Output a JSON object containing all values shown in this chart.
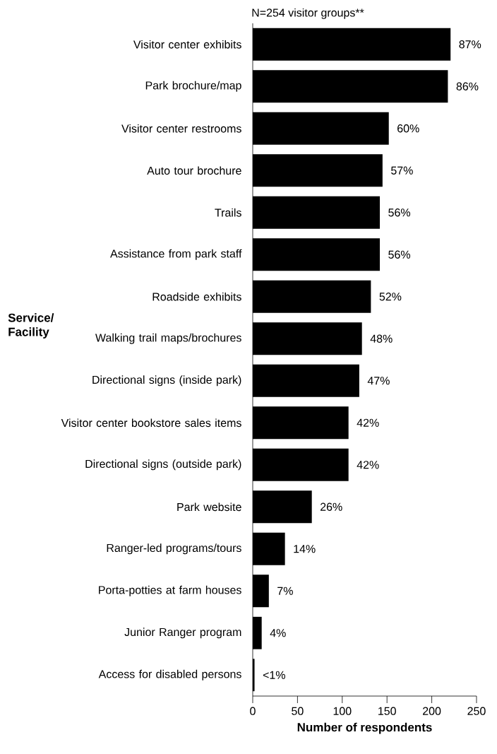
{
  "chart_data": {
    "type": "bar",
    "orientation": "horizontal",
    "title": "N=254 visitor groups**",
    "xlabel": "Number of respondents",
    "ylabel": "Service/ Facility",
    "categories": [
      "Visitor center exhibits",
      "Park brochure/map",
      "Visitor center restrooms",
      "Auto tour brochure",
      "Trails",
      "Assistance from park staff",
      "Roadside exhibits",
      "Walking trail maps/brochures",
      "Directional signs (inside park)",
      "Visitor center bookstore sales items",
      "Directional signs (outside park)",
      "Park website",
      "Ranger-led programs/tours",
      "Porta-potties at farm houses",
      "Junior Ranger program",
      "Access for disabled persons"
    ],
    "values": [
      221,
      218,
      152,
      145,
      142,
      142,
      132,
      122,
      119,
      107,
      107,
      66,
      36,
      18,
      10,
      2
    ],
    "annotations": [
      {
        "text": "87%",
        "x": 221,
        "y": "Visitor center exhibits"
      },
      {
        "text": "86%",
        "x": 218,
        "y": "Park brochure/map"
      },
      {
        "text": "60%",
        "x": 152,
        "y": "Visitor center restrooms"
      },
      {
        "text": "57%",
        "x": 145,
        "y": "Auto tour brochure"
      },
      {
        "text": "56%",
        "x": 142,
        "y": "Trails"
      },
      {
        "text": "56%",
        "x": 142,
        "y": "Assistance from park staff"
      },
      {
        "text": "52%",
        "x": 132,
        "y": "Roadside exhibits"
      },
      {
        "text": "48%",
        "x": 122,
        "y": "Walking trail maps/brochures"
      },
      {
        "text": "47%",
        "x": 119,
        "y": "Directional signs (inside park)"
      },
      {
        "text": "42%",
        "x": 107,
        "y": "Visitor center bookstore sales items"
      },
      {
        "text": "42%",
        "x": 107,
        "y": "Directional signs (outside park)"
      },
      {
        "text": "26%",
        "x": 66,
        "y": "Park website"
      },
      {
        "text": "14%",
        "x": 36,
        "y": "Ranger-led programs/tours"
      },
      {
        "text": "7%",
        "x": 18,
        "y": "Porta-potties at farm houses"
      },
      {
        "text": "4%",
        "x": 10,
        "y": "Junior Ranger program"
      },
      {
        "text": "<1%",
        "x": 2,
        "y": "Access for disabled persons"
      }
    ],
    "color": "#000000",
    "xlim": [
      0,
      250
    ],
    "xticks": [
      0,
      50,
      100,
      150,
      200,
      250
    ],
    "grid": false
  }
}
